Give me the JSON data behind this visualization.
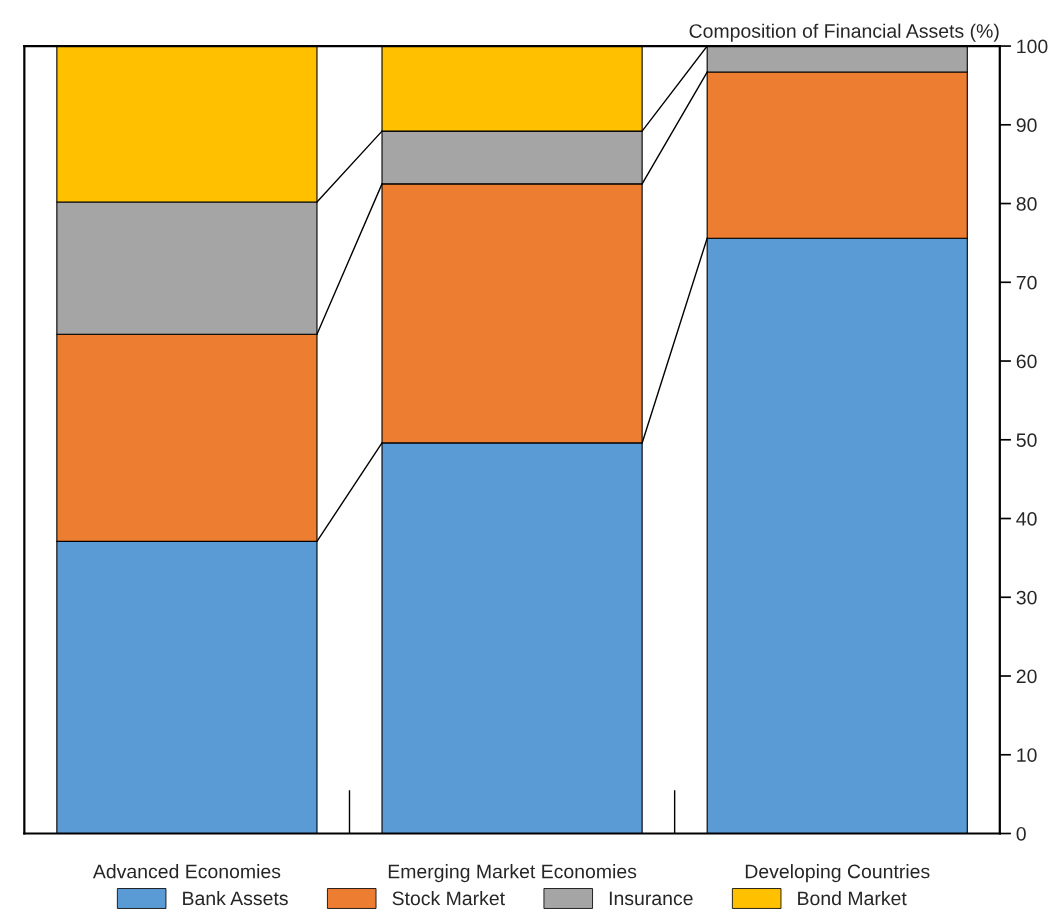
{
  "chart_data": {
    "type": "bar",
    "stacked": true,
    "ylabel": "Composition of Financial Assets (%)",
    "categories": [
      "Advanced Economies",
      "Emerging Market Economies",
      "Developing Countries"
    ],
    "series": [
      {
        "name": "Bank Assets",
        "color": "#5b9bd5",
        "values": [
          37.1,
          49.6,
          75.6
        ]
      },
      {
        "name": "Stock Market",
        "color": "#ed7d31",
        "values": [
          26.3,
          32.9,
          21.1
        ]
      },
      {
        "name": "Insurance",
        "color": "#a5a5a5",
        "values": [
          16.8,
          6.7,
          3.3
        ]
      },
      {
        "name": "Bond Market",
        "color": "#ffc000",
        "values": [
          19.8,
          10.8,
          0
        ]
      }
    ],
    "ylim": [
      0,
      100
    ],
    "yticks": [
      0,
      10,
      20,
      30,
      40,
      50,
      60,
      70,
      80,
      90,
      100
    ],
    "legend": "bottom",
    "grid": false
  }
}
